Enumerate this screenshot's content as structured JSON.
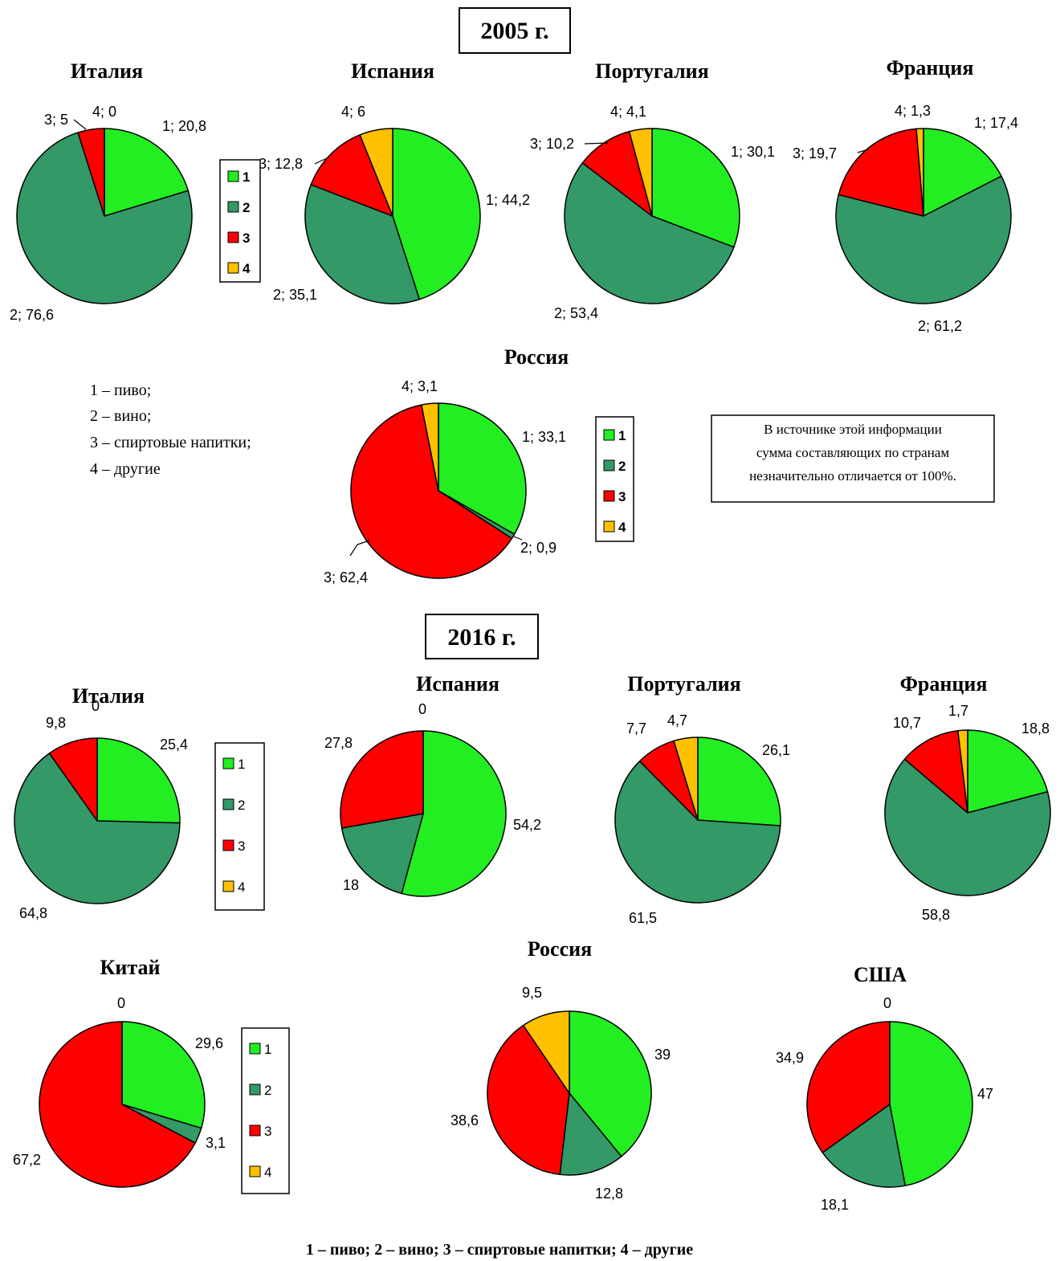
{
  "colors": {
    "beer": "#22ee22",
    "wine": "#339966",
    "spirits": "#ff0000",
    "other": "#ffc000"
  },
  "year_labels": [
    "2005 г.",
    "2016 г."
  ],
  "legend_numbers": [
    "1",
    "2",
    "3",
    "4"
  ],
  "legend_2005_text": [
    "1 – пиво;",
    "2 – вино;",
    "3 – спиртовые напитки;",
    "4 – другие"
  ],
  "footer_legend": "1 – пиво; 2 – вино; 3 – спиртовые напитки; 4 – другие",
  "note": [
    "В источнике этой информации",
    "сумма составляющих по странам",
    "незначительно отличается от 100%."
  ],
  "chart_data": [
    {
      "type": "pie",
      "year": "2005",
      "title": "Италия",
      "values": [
        20.8,
        76.6,
        5,
        0
      ],
      "labels": [
        "1; 20,8",
        "2; 76,6",
        "3; 5",
        "4; 0"
      ]
    },
    {
      "type": "pie",
      "year": "2005",
      "title": "Испания",
      "values": [
        44.2,
        35.1,
        12.8,
        6
      ],
      "labels": [
        "1; 44,2",
        "2; 35,1",
        "3; 12,8",
        "4; 6"
      ]
    },
    {
      "type": "pie",
      "year": "2005",
      "title": "Португалия",
      "values": [
        30.1,
        53.4,
        10.2,
        4.1
      ],
      "labels": [
        "1; 30,1",
        "2; 53,4",
        "3; 10,2",
        "4; 4,1"
      ]
    },
    {
      "type": "pie",
      "year": "2005",
      "title": "Франция",
      "values": [
        17.4,
        61.2,
        19.7,
        1.3
      ],
      "labels": [
        "1; 17,4",
        "2; 61,2",
        "3; 19,7",
        "4; 1,3"
      ]
    },
    {
      "type": "pie",
      "year": "2005",
      "title": "Россия",
      "values": [
        33.1,
        0.9,
        62.4,
        3.1
      ],
      "labels": [
        "1; 33,1",
        "2; 0,9",
        "3; 62,4",
        "4; 3,1"
      ]
    },
    {
      "type": "pie",
      "year": "2016",
      "title": "Италия",
      "values": [
        25.4,
        64.8,
        9.8,
        0
      ],
      "labels": [
        "25,4",
        "64,8",
        "9,8",
        "0"
      ]
    },
    {
      "type": "pie",
      "year": "2016",
      "title": "Испания",
      "values": [
        54.2,
        18,
        27.8,
        0
      ],
      "labels": [
        "54,2",
        "18",
        "27,8",
        "0"
      ]
    },
    {
      "type": "pie",
      "year": "2016",
      "title": "Португалия",
      "values": [
        26.1,
        61.5,
        7.7,
        4.7
      ],
      "labels": [
        "26,1",
        "61,5",
        "7,7",
        "4,7"
      ]
    },
    {
      "type": "pie",
      "year": "2016",
      "title": "Франция",
      "values": [
        18.8,
        58.8,
        10.7,
        1.7
      ],
      "labels": [
        "18,8",
        "58,8",
        "10,7",
        "1,7"
      ]
    },
    {
      "type": "pie",
      "year": "2016",
      "title": "Китай",
      "values": [
        29.6,
        3.1,
        67.2,
        0
      ],
      "labels": [
        "29,6",
        "3,1",
        "67,2",
        "0"
      ]
    },
    {
      "type": "pie",
      "year": "2016",
      "title": "Россия",
      "values": [
        39,
        12.8,
        38.6,
        9.5
      ],
      "labels": [
        "39",
        "12,8",
        "38,6",
        "9,5"
      ]
    },
    {
      "type": "pie",
      "year": "2016",
      "title": "США",
      "values": [
        47,
        18.1,
        34.9,
        0
      ],
      "labels": [
        "47",
        "18,1",
        "34,9",
        "0"
      ]
    }
  ]
}
